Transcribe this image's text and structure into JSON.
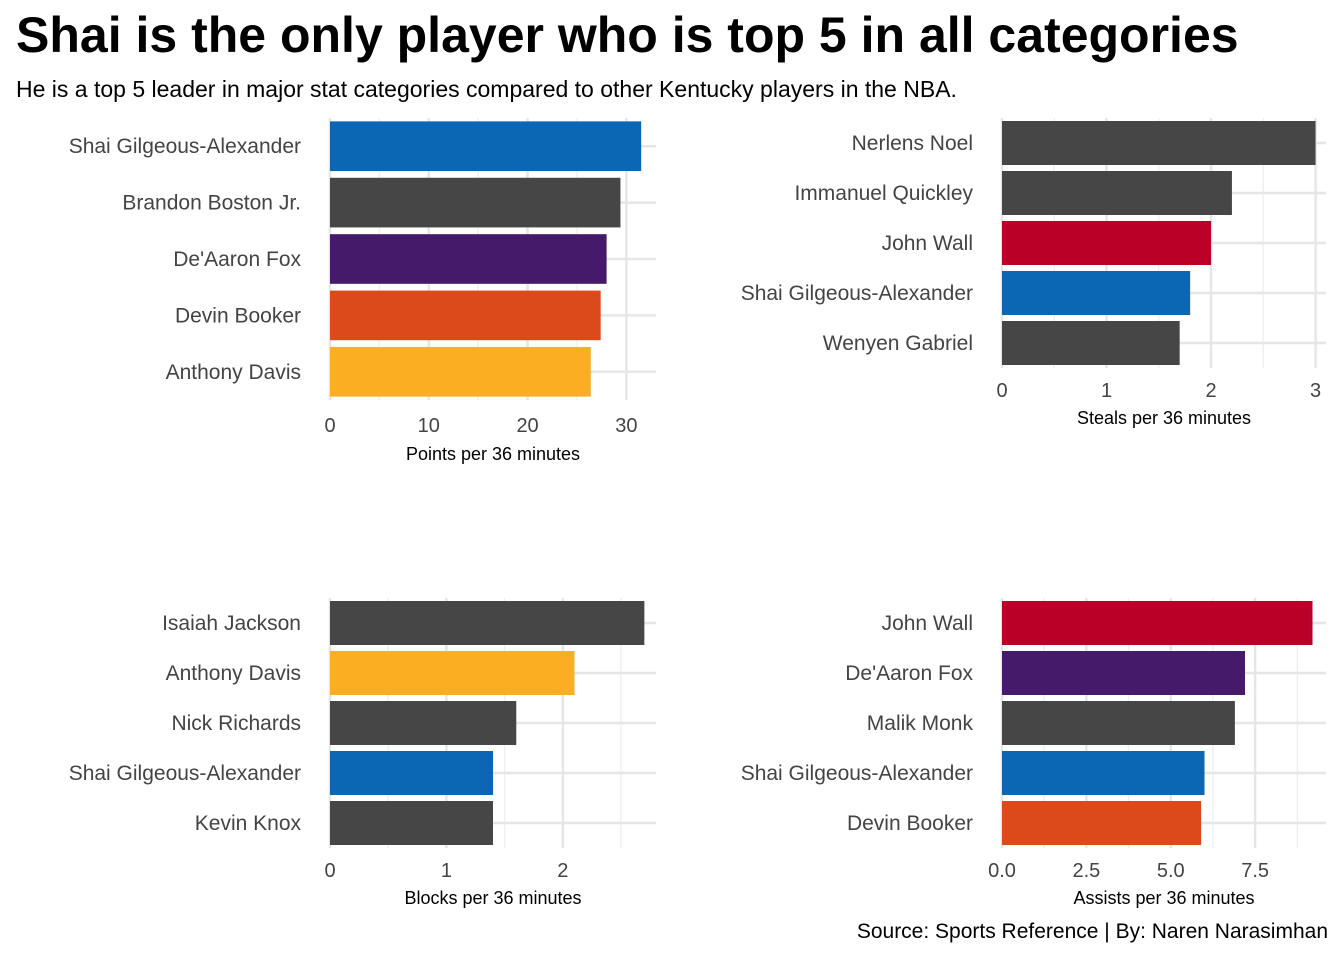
{
  "title": "Shai is the only player who is top 5 in all categories",
  "subtitle": "He is a top 5 leader in major stat categories compared to other Kentucky players in the NBA.",
  "caption": "Source: Sports Reference | By: Naren Narasimhan",
  "chart_data": [
    {
      "type": "bar",
      "orientation": "horizontal",
      "xlabel": "Points per 36 minutes",
      "xlim": [
        0,
        33
      ],
      "ticks": [
        0,
        10,
        20,
        30
      ],
      "tick_labels": [
        "0",
        "10",
        "20",
        "30"
      ],
      "grid": true,
      "categories": [
        "Shai Gilgeous-Alexander",
        "Brandon Boston Jr.",
        "De'Aaron Fox",
        "Devin Booker",
        "Anthony Davis"
      ],
      "values": [
        31.5,
        29.4,
        28.0,
        27.4,
        26.4
      ],
      "colors": [
        "#0B66B4",
        "#464646",
        "#461A6A",
        "#DC4A1B",
        "#FBAE22"
      ]
    },
    {
      "type": "bar",
      "orientation": "horizontal",
      "xlabel": "Steals per 36 minutes",
      "xlim": [
        0,
        3.1
      ],
      "ticks": [
        0,
        1,
        2,
        3
      ],
      "tick_labels": [
        "0",
        "1",
        "2",
        "3"
      ],
      "grid": true,
      "categories": [
        "Nerlens Noel",
        "Immanuel Quickley",
        "John Wall",
        "Shai Gilgeous-Alexander",
        "Wenyen Gabriel"
      ],
      "values": [
        3.0,
        2.2,
        2.0,
        1.8,
        1.7
      ],
      "colors": [
        "#464646",
        "#464646",
        "#BA0026",
        "#0B66B4",
        "#464646"
      ]
    },
    {
      "type": "bar",
      "orientation": "horizontal",
      "xlabel": "Blocks per 36 minutes",
      "xlim": [
        0,
        2.8
      ],
      "ticks": [
        0,
        1,
        2
      ],
      "tick_labels": [
        "0",
        "1",
        "2"
      ],
      "grid": true,
      "categories": [
        "Isaiah Jackson",
        "Anthony Davis",
        "Nick Richards",
        "Shai Gilgeous-Alexander",
        "Kevin Knox"
      ],
      "values": [
        2.7,
        2.1,
        1.6,
        1.4,
        1.4
      ],
      "colors": [
        "#464646",
        "#FBAE22",
        "#464646",
        "#0B66B4",
        "#464646"
      ]
    },
    {
      "type": "bar",
      "orientation": "horizontal",
      "xlabel": "Assists per 36 minutes",
      "xlim": [
        0,
        9.6
      ],
      "ticks": [
        0,
        2.5,
        5,
        7.5
      ],
      "tick_labels": [
        "0.0",
        "2.5",
        "5.0",
        "7.5"
      ],
      "grid": true,
      "categories": [
        "John Wall",
        "De'Aaron Fox",
        "Malik Monk",
        "Shai Gilgeous-Alexander",
        "Devin Booker"
      ],
      "values": [
        9.2,
        7.2,
        6.9,
        6.0,
        5.9
      ],
      "colors": [
        "#BA0026",
        "#461A6A",
        "#464646",
        "#0B66B4",
        "#DC4A1B"
      ]
    }
  ]
}
